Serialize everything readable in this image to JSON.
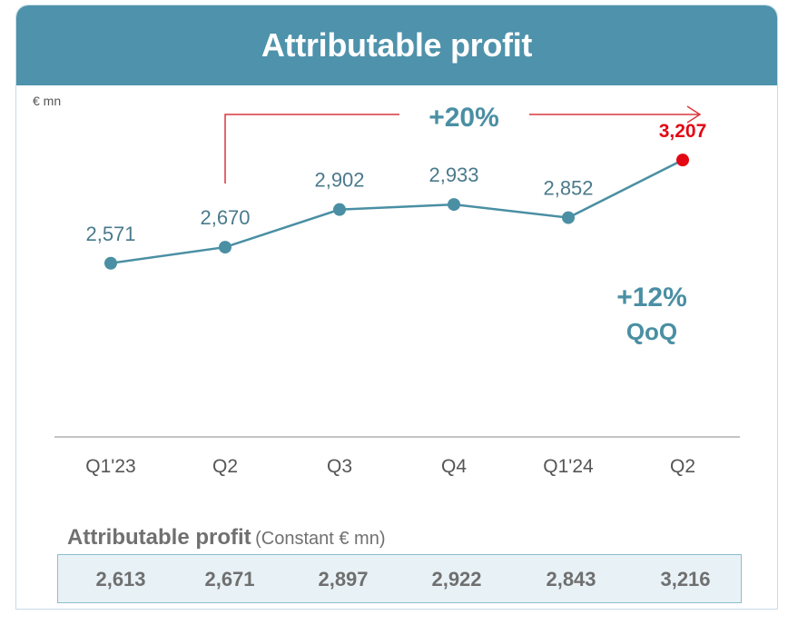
{
  "header": {
    "title": "Attributable profit"
  },
  "unit_label": "€ mn",
  "chart_data": {
    "type": "line",
    "categories": [
      "Q1'23",
      "Q2",
      "Q3",
      "Q4",
      "Q1'24",
      "Q2"
    ],
    "values": [
      2571,
      2670,
      2902,
      2933,
      2852,
      3207
    ],
    "value_labels": [
      "2,571",
      "2,670",
      "2,902",
      "2,933",
      "2,852",
      "3,207"
    ],
    "highlight_index": 5,
    "ylim": [
      1500,
      3600
    ],
    "colors": {
      "line": "#4a8fa3",
      "highlight": "#e30613",
      "arrow": "#d9363e",
      "axis": "#8a8a8a"
    },
    "annotations": {
      "yoy": "+20%",
      "qoq_value": "+12%",
      "qoq_label": "QoQ"
    }
  },
  "constant_table": {
    "title": "Attributable profit",
    "subtitle": "(Constant € mn)",
    "values": [
      "2,613",
      "2,671",
      "2,897",
      "2,922",
      "2,843",
      "3,216"
    ]
  }
}
